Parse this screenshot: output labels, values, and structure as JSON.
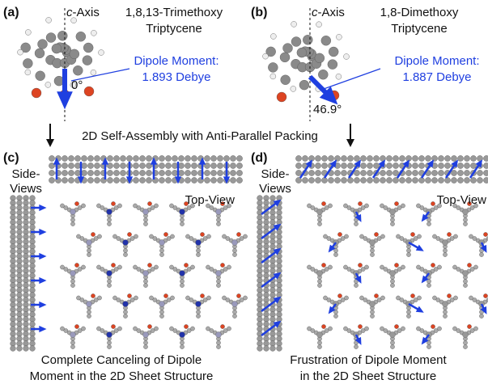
{
  "panels_top": [
    {
      "label": "(a)",
      "axis_symbol": "c",
      "axis_suffix": "-Axis",
      "molecule_line1": "1,8,13-Trimethoxy",
      "molecule_line2": "Triptycene",
      "dipole_title": "Dipole Moment:",
      "dipole_value": "1.893 Debye",
      "angle": "0°"
    },
    {
      "label": "(b)",
      "axis_symbol": "c",
      "axis_suffix": "-Axis",
      "molecule_line1": "1,8-Dimethoxy",
      "molecule_line2": "Triptycene",
      "dipole_title": "Dipole Moment:",
      "dipole_value": "1.887 Debye",
      "angle": "46.9°"
    }
  ],
  "transition": "2D Self-Assembly with Anti-Parallel Packing",
  "panels_bottom": [
    {
      "label": "(c)",
      "side_line1": "Side-",
      "side_line2": "Views",
      "top_view": "Top-View",
      "caption_line1": "Complete Canceling of Dipole",
      "caption_line2": "Moment in the 2D Sheet Structure"
    },
    {
      "label": "(d)",
      "side_line1": "Side-",
      "side_line2": "Views",
      "top_view": "Top-View",
      "caption_line1": "Frustration of Dipole Moment",
      "caption_line2": "in the 2D Sheet Structure"
    }
  ]
}
